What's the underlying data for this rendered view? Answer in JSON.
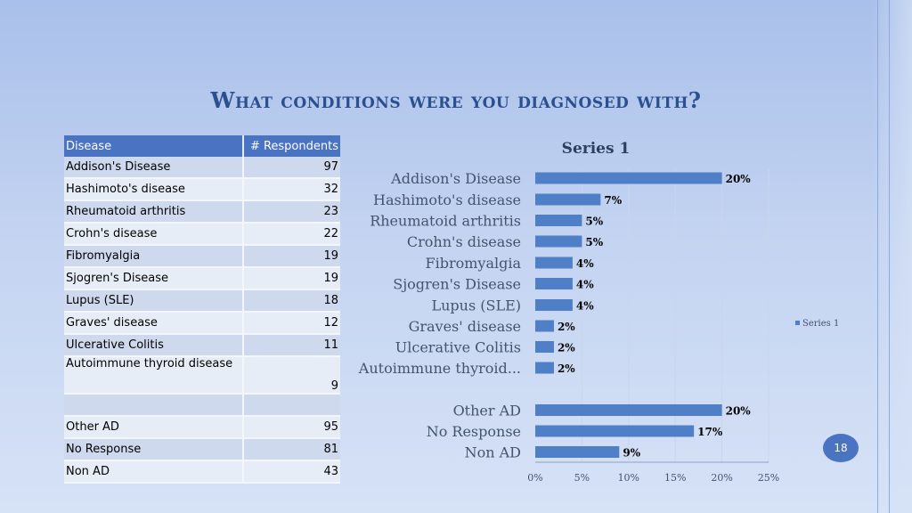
{
  "title": "What conditions were you diagnosed with?",
  "table": {
    "headers": [
      "Disease",
      "# Respondents"
    ],
    "rows": [
      {
        "name": "Addison's Disease",
        "count": "97"
      },
      {
        "name": "Hashimoto's disease",
        "count": "32"
      },
      {
        "name": "Rheumatoid arthritis",
        "count": "23"
      },
      {
        "name": "Crohn's disease",
        "count": "22"
      },
      {
        "name": "Fibromyalgia",
        "count": "19"
      },
      {
        "name": "Sjogren's Disease",
        "count": "19"
      },
      {
        "name": "Lupus (SLE)",
        "count": "18"
      },
      {
        "name": "Graves' disease",
        "count": "12"
      },
      {
        "name": "Ulcerative Colitis",
        "count": "11"
      },
      {
        "name": "Autoimmune thyroid disease",
        "count": "9"
      },
      {
        "name": "",
        "count": ""
      },
      {
        "name": "Other AD",
        "count": "95"
      },
      {
        "name": "No Response",
        "count": "81"
      },
      {
        "name": "Non AD",
        "count": "43"
      }
    ]
  },
  "chart_data": {
    "type": "bar",
    "orientation": "horizontal",
    "title": "Series 1",
    "categories": [
      "Addison's Disease",
      "Hashimoto's disease",
      "Rheumatoid arthritis",
      "Crohn's disease",
      "Fibromyalgia",
      "Sjogren's Disease",
      "Lupus (SLE)",
      "Graves' disease",
      "Ulcerative Colitis",
      "Autoimmune thyroid...",
      "",
      "Other AD",
      "No Response",
      "Non AD"
    ],
    "series": [
      {
        "name": "Series 1",
        "values": [
          20,
          7,
          5,
          5,
          4,
          4,
          4,
          2,
          2,
          2,
          null,
          20,
          17,
          9
        ],
        "labels": [
          "20%",
          "7%",
          "5%",
          "5%",
          "4%",
          "4%",
          "4%",
          "2%",
          "2%",
          "2%",
          "",
          "20%",
          "17%",
          "9%"
        ]
      }
    ],
    "xlim": [
      0,
      25
    ],
    "xticks": [
      "0%",
      "5%",
      "10%",
      "15%",
      "20%",
      "25%"
    ],
    "legend": "right",
    "grid": true,
    "bar_color": "#4f7fc7"
  },
  "slide_number": "18"
}
